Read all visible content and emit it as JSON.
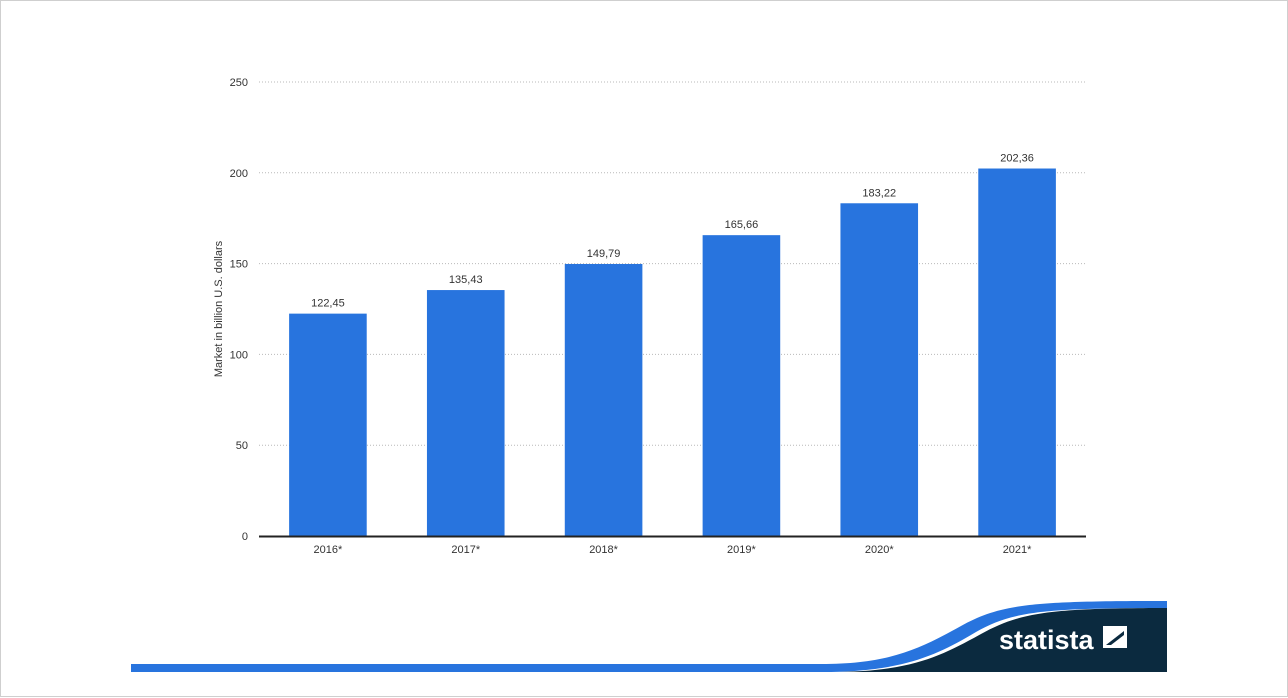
{
  "chart_data": {
    "type": "bar",
    "categories": [
      "2016*",
      "2017*",
      "2018*",
      "2019*",
      "2020*",
      "2021*"
    ],
    "values": [
      122.45,
      135.43,
      149.79,
      165.66,
      183.22,
      202.36
    ],
    "value_labels": [
      "122,45",
      "135,43",
      "149,79",
      "165,66",
      "183,22",
      "202,36"
    ],
    "ylabel": "Market in billion U.S. dollars",
    "xlabel": "",
    "ylim": [
      0,
      250
    ],
    "yticks": [
      0,
      50,
      100,
      150,
      200,
      250
    ],
    "grid": true,
    "bar_color": "#2874de"
  },
  "brand": {
    "name": "statista",
    "dark_color": "#0b2a3f",
    "accent_color": "#2874de"
  }
}
